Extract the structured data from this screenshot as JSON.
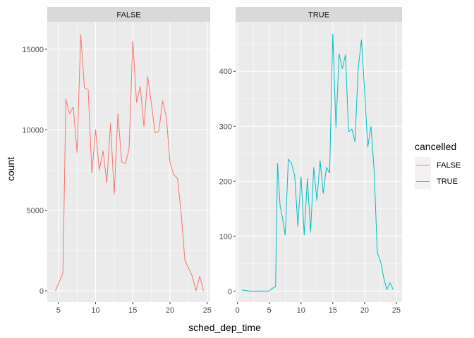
{
  "chart_data": {
    "type": "line",
    "xlabel": "sched_dep_time",
    "ylabel": "count",
    "grid": true,
    "facet_scales": "free_y",
    "legend": {
      "title": "cancelled",
      "placement": "right",
      "entries": [
        {
          "label": "FALSE",
          "color": "#F8766D"
        },
        {
          "label": "TRUE",
          "color": "#00BFC4"
        }
      ]
    },
    "panels": [
      {
        "strip": "FALSE",
        "color": "#F8766D",
        "xlim": [
          3.5,
          25.4
        ],
        "ylim": [
          -700,
          16700
        ],
        "x_ticks": [
          5,
          10,
          15,
          20,
          25
        ],
        "y_ticks": [
          0,
          5000,
          10000,
          15000
        ],
        "series": {
          "x": [
            4.6,
            5.6,
            6.0,
            6.5,
            7.0,
            7.5,
            8.0,
            8.5,
            9.0,
            9.5,
            10.0,
            10.5,
            11.0,
            11.5,
            12.0,
            12.5,
            13.0,
            13.5,
            14.0,
            14.5,
            15.0,
            15.5,
            16.0,
            16.5,
            17.0,
            17.5,
            18.0,
            18.5,
            19.0,
            19.5,
            20.0,
            20.5,
            21.0,
            21.5,
            22.0,
            22.5,
            23.0,
            23.5,
            24.0,
            24.5
          ],
          "y": [
            0,
            1100,
            11900,
            11000,
            11400,
            8600,
            15900,
            12600,
            12500,
            7300,
            10000,
            7500,
            8700,
            6700,
            10400,
            6000,
            11000,
            8000,
            7900,
            8800,
            15500,
            11700,
            12700,
            10200,
            13300,
            11600,
            9800,
            9900,
            11800,
            10800,
            8000,
            7200,
            7000,
            4800,
            1900,
            1400,
            900,
            0,
            900,
            0
          ]
        }
      },
      {
        "strip": "TRUE",
        "color": "#00BFC4",
        "xlim": [
          -0.3,
          25.9
        ],
        "ylim": [
          -20,
          490
        ],
        "x_ticks": [
          0,
          5,
          10,
          15,
          20,
          25
        ],
        "y_ticks": [
          0,
          100,
          200,
          300,
          400
        ],
        "series": {
          "x": [
            0.7,
            1.2,
            2.0,
            3.0,
            4.0,
            5.0,
            5.5,
            6.0,
            6.3,
            6.7,
            7.0,
            7.5,
            8.0,
            8.5,
            9.0,
            9.5,
            10.0,
            10.5,
            11.0,
            11.5,
            12.0,
            12.5,
            13.0,
            13.5,
            14.0,
            14.5,
            15.0,
            15.5,
            16.0,
            16.5,
            17.0,
            17.5,
            18.0,
            18.5,
            19.0,
            19.5,
            20.0,
            20.5,
            21.0,
            21.5,
            22.0,
            22.5,
            23.0,
            23.5,
            24.0,
            24.5
          ],
          "y": [
            2,
            1,
            0,
            0,
            0,
            0,
            5,
            8,
            232,
            155,
            138,
            102,
            240,
            232,
            210,
            118,
            208,
            102,
            205,
            108,
            225,
            165,
            237,
            178,
            225,
            215,
            468,
            298,
            432,
            405,
            430,
            290,
            295,
            272,
            405,
            457,
            365,
            262,
            300,
            220,
            70,
            55,
            25,
            3,
            15,
            3
          ]
        }
      }
    ]
  }
}
